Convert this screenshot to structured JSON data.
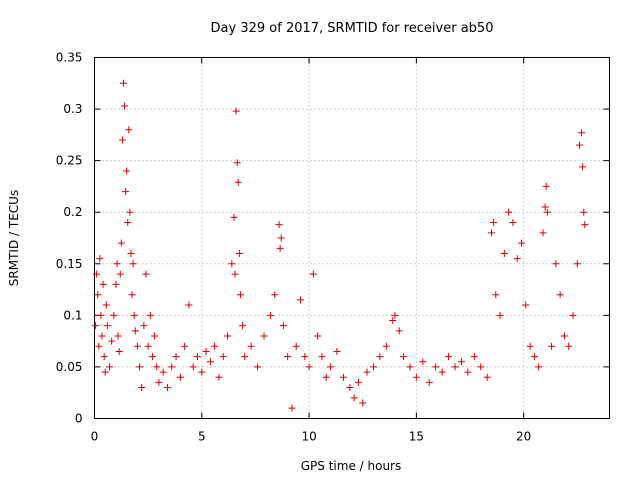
{
  "chart_data": {
    "type": "scatter",
    "title": "Day 329 of 2017, SRMTID for receiver ab50",
    "xlabel": "GPS time / hours",
    "ylabel": "SRMTID / TECUs",
    "xlim": [
      0,
      24
    ],
    "ylim": [
      0,
      0.35
    ],
    "xticks": [
      0,
      5,
      10,
      15,
      20
    ],
    "xtick_labels": [
      "0",
      "5",
      "10",
      "15",
      "20"
    ],
    "yticks": [
      0,
      0.05,
      0.1,
      0.15,
      0.2,
      0.25,
      0.3,
      0.35
    ],
    "ytick_labels": [
      "0",
      "0.05",
      "0.1",
      "0.15",
      "0.2",
      "0.25",
      "0.3",
      "0.35"
    ],
    "grid": true,
    "marker": "+",
    "color": "#e00000",
    "series": [
      {
        "name": "SRMTID",
        "points": [
          [
            0.05,
            0.09
          ],
          [
            0.1,
            0.14
          ],
          [
            0.15,
            0.12
          ],
          [
            0.2,
            0.07
          ],
          [
            0.25,
            0.155
          ],
          [
            0.3,
            0.1
          ],
          [
            0.35,
            0.08
          ],
          [
            0.4,
            0.13
          ],
          [
            0.45,
            0.06
          ],
          [
            0.5,
            0.045
          ],
          [
            0.55,
            0.11
          ],
          [
            0.6,
            0.09
          ],
          [
            0.7,
            0.05
          ],
          [
            0.8,
            0.075
          ],
          [
            0.9,
            0.1
          ],
          [
            1.0,
            0.13
          ],
          [
            1.05,
            0.15
          ],
          [
            1.1,
            0.08
          ],
          [
            1.15,
            0.065
          ],
          [
            1.2,
            0.14
          ],
          [
            1.25,
            0.17
          ],
          [
            1.3,
            0.27
          ],
          [
            1.35,
            0.325
          ],
          [
            1.4,
            0.303
          ],
          [
            1.45,
            0.22
          ],
          [
            1.5,
            0.24
          ],
          [
            1.55,
            0.19
          ],
          [
            1.6,
            0.28
          ],
          [
            1.65,
            0.2
          ],
          [
            1.7,
            0.16
          ],
          [
            1.75,
            0.12
          ],
          [
            1.8,
            0.15
          ],
          [
            1.85,
            0.1
          ],
          [
            1.9,
            0.085
          ],
          [
            2.0,
            0.07
          ],
          [
            2.1,
            0.05
          ],
          [
            2.2,
            0.03
          ],
          [
            2.3,
            0.09
          ],
          [
            2.4,
            0.14
          ],
          [
            2.5,
            0.07
          ],
          [
            2.6,
            0.1
          ],
          [
            2.7,
            0.06
          ],
          [
            2.8,
            0.08
          ],
          [
            2.9,
            0.05
          ],
          [
            3.0,
            0.035
          ],
          [
            3.2,
            0.045
          ],
          [
            3.4,
            0.03
          ],
          [
            3.6,
            0.05
          ],
          [
            3.8,
            0.06
          ],
          [
            4.0,
            0.04
          ],
          [
            4.2,
            0.07
          ],
          [
            4.4,
            0.11
          ],
          [
            4.6,
            0.05
          ],
          [
            4.8,
            0.06
          ],
          [
            5.0,
            0.045
          ],
          [
            5.2,
            0.065
          ],
          [
            5.4,
            0.055
          ],
          [
            5.6,
            0.07
          ],
          [
            5.8,
            0.04
          ],
          [
            6.0,
            0.06
          ],
          [
            6.2,
            0.08
          ],
          [
            6.4,
            0.15
          ],
          [
            6.5,
            0.195
          ],
          [
            6.55,
            0.14
          ],
          [
            6.6,
            0.298
          ],
          [
            6.65,
            0.248
          ],
          [
            6.7,
            0.229
          ],
          [
            6.75,
            0.16
          ],
          [
            6.8,
            0.12
          ],
          [
            6.9,
            0.09
          ],
          [
            7.0,
            0.06
          ],
          [
            7.3,
            0.07
          ],
          [
            7.6,
            0.05
          ],
          [
            7.9,
            0.08
          ],
          [
            8.2,
            0.1
          ],
          [
            8.4,
            0.12
          ],
          [
            8.6,
            0.188
          ],
          [
            8.65,
            0.165
          ],
          [
            8.7,
            0.175
          ],
          [
            8.8,
            0.09
          ],
          [
            9.0,
            0.06
          ],
          [
            9.2,
            0.01
          ],
          [
            9.4,
            0.07
          ],
          [
            9.6,
            0.115
          ],
          [
            9.8,
            0.06
          ],
          [
            10.0,
            0.05
          ],
          [
            10.2,
            0.14
          ],
          [
            10.4,
            0.08
          ],
          [
            10.6,
            0.06
          ],
          [
            10.8,
            0.04
          ],
          [
            11.0,
            0.05
          ],
          [
            11.3,
            0.065
          ],
          [
            11.6,
            0.04
          ],
          [
            11.9,
            0.03
          ],
          [
            12.1,
            0.02
          ],
          [
            12.3,
            0.035
          ],
          [
            12.5,
            0.015
          ],
          [
            12.7,
            0.045
          ],
          [
            13.0,
            0.05
          ],
          [
            13.3,
            0.06
          ],
          [
            13.6,
            0.07
          ],
          [
            13.9,
            0.095
          ],
          [
            14.0,
            0.1
          ],
          [
            14.2,
            0.085
          ],
          [
            14.4,
            0.06
          ],
          [
            14.7,
            0.05
          ],
          [
            15.0,
            0.04
          ],
          [
            15.3,
            0.055
          ],
          [
            15.6,
            0.035
          ],
          [
            15.9,
            0.05
          ],
          [
            16.2,
            0.045
          ],
          [
            16.5,
            0.06
          ],
          [
            16.8,
            0.05
          ],
          [
            17.1,
            0.055
          ],
          [
            17.4,
            0.045
          ],
          [
            17.7,
            0.06
          ],
          [
            18.0,
            0.05
          ],
          [
            18.3,
            0.04
          ],
          [
            18.5,
            0.18
          ],
          [
            18.6,
            0.19
          ],
          [
            18.7,
            0.12
          ],
          [
            18.9,
            0.1
          ],
          [
            19.1,
            0.16
          ],
          [
            19.3,
            0.2
          ],
          [
            19.5,
            0.19
          ],
          [
            19.7,
            0.155
          ],
          [
            19.9,
            0.17
          ],
          [
            20.1,
            0.11
          ],
          [
            20.3,
            0.07
          ],
          [
            20.5,
            0.06
          ],
          [
            20.7,
            0.05
          ],
          [
            20.9,
            0.18
          ],
          [
            21.0,
            0.205
          ],
          [
            21.05,
            0.225
          ],
          [
            21.1,
            0.2
          ],
          [
            21.3,
            0.07
          ],
          [
            21.5,
            0.15
          ],
          [
            21.7,
            0.12
          ],
          [
            21.9,
            0.08
          ],
          [
            22.1,
            0.07
          ],
          [
            22.3,
            0.1
          ],
          [
            22.5,
            0.15
          ],
          [
            22.6,
            0.265
          ],
          [
            22.7,
            0.277
          ],
          [
            22.75,
            0.244
          ],
          [
            22.8,
            0.2
          ],
          [
            22.85,
            0.188
          ]
        ]
      }
    ]
  }
}
